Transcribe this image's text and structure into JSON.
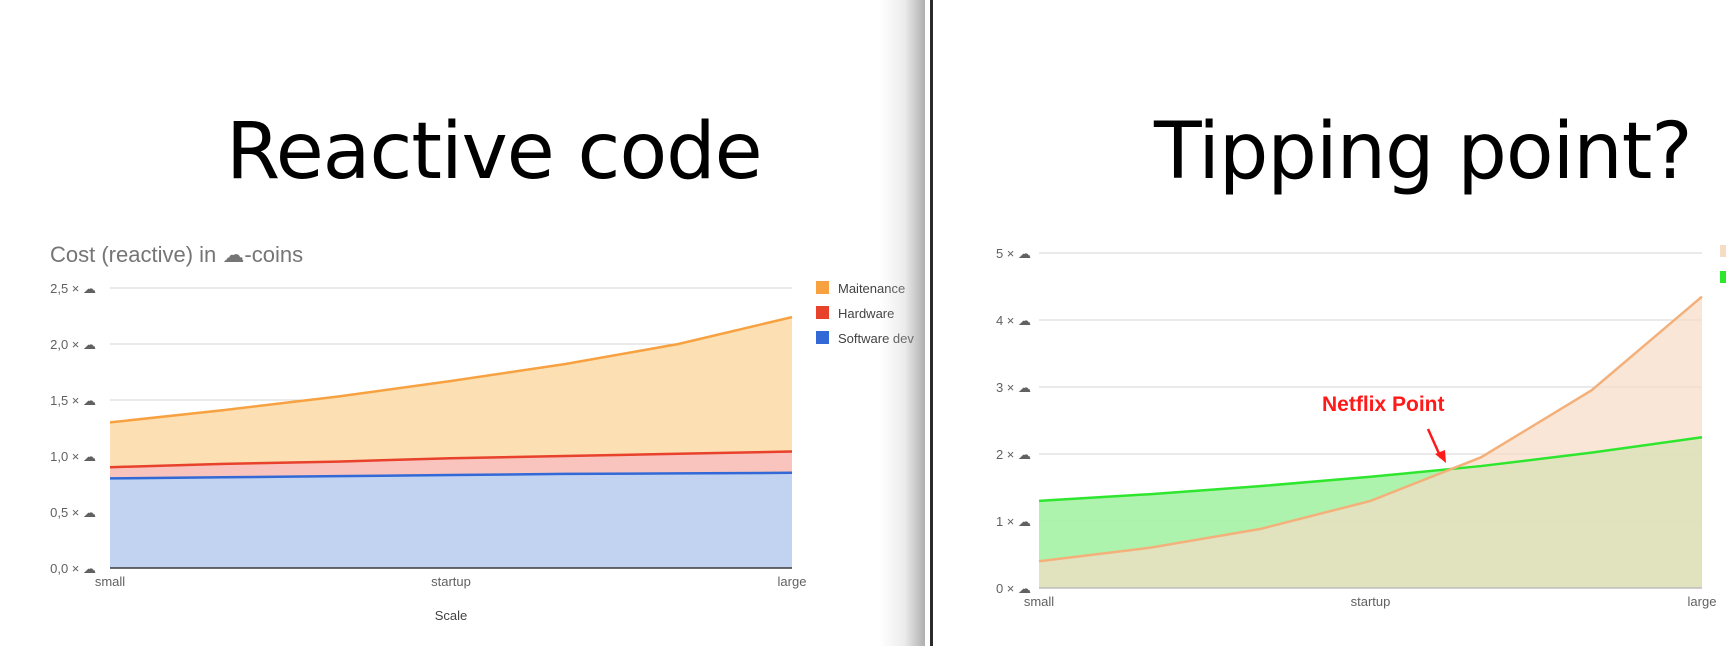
{
  "slides": [
    {
      "title": "Reactive code"
    },
    {
      "title": "Tipping point?",
      "annotation": "Netflix Point"
    }
  ],
  "colors": {
    "maintenance": "#f7a141",
    "maintenance_fill": "#fce0b3",
    "hardware": "#e8412c",
    "hardware_fill": "#f8c4bd",
    "software": "#3369d6",
    "software_fill": "#c1d3f0",
    "green": "#2ee62e",
    "green_fill": "#a4f2a4",
    "peach_fill": "#f7dcc5",
    "orange_line": "#f4b07a",
    "grid": "#d6d6d6",
    "text": "#616161"
  },
  "chart_data": [
    {
      "type": "area",
      "stacked": true,
      "title": "Cost (reactive) in ☁-coins",
      "xlabel": "Scale",
      "ylabel": "",
      "x_tick_labels": [
        "small",
        "startup",
        "large"
      ],
      "y_tick_labels": [
        "0,0 × ☁",
        "0,5 × ☁",
        "1,0 × ☁",
        "1,5 × ☁",
        "2,0 × ☁",
        "2,5 × ☁"
      ],
      "ylim": [
        0,
        2.5
      ],
      "x": [
        0,
        1,
        2,
        3,
        4,
        5,
        6
      ],
      "series": [
        {
          "name": "Software dev",
          "values": [
            0.8,
            0.81,
            0.82,
            0.83,
            0.84,
            0.845,
            0.85
          ]
        },
        {
          "name": "Hardware",
          "values": [
            0.1,
            0.12,
            0.13,
            0.15,
            0.16,
            0.175,
            0.19
          ]
        },
        {
          "name": "Maitenance",
          "values": [
            0.4,
            0.48,
            0.58,
            0.69,
            0.82,
            0.98,
            1.2
          ]
        }
      ],
      "legend": [
        "Maitenance",
        "Hardware",
        "Software dev"
      ],
      "legend_position": "right",
      "grid": true
    },
    {
      "type": "area",
      "stacked": false,
      "title": "",
      "xlabel": "",
      "ylabel": "",
      "x_tick_labels": [
        "small",
        "startup",
        "large"
      ],
      "y_tick_labels": [
        "0 × ☁",
        "1 × ☁",
        "2 × ☁",
        "3 × ☁",
        "4 × ☁",
        "5 × ☁"
      ],
      "ylim": [
        0,
        5
      ],
      "x": [
        0,
        1,
        2,
        3,
        4,
        5,
        6
      ],
      "series": [
        {
          "values": [
            1.3,
            1.4,
            1.52,
            1.66,
            1.82,
            2.02,
            2.25
          ]
        },
        {
          "values": [
            0.4,
            0.6,
            0.88,
            1.3,
            1.95,
            2.95,
            4.35
          ]
        }
      ],
      "legend_position": "right",
      "grid": true
    }
  ]
}
